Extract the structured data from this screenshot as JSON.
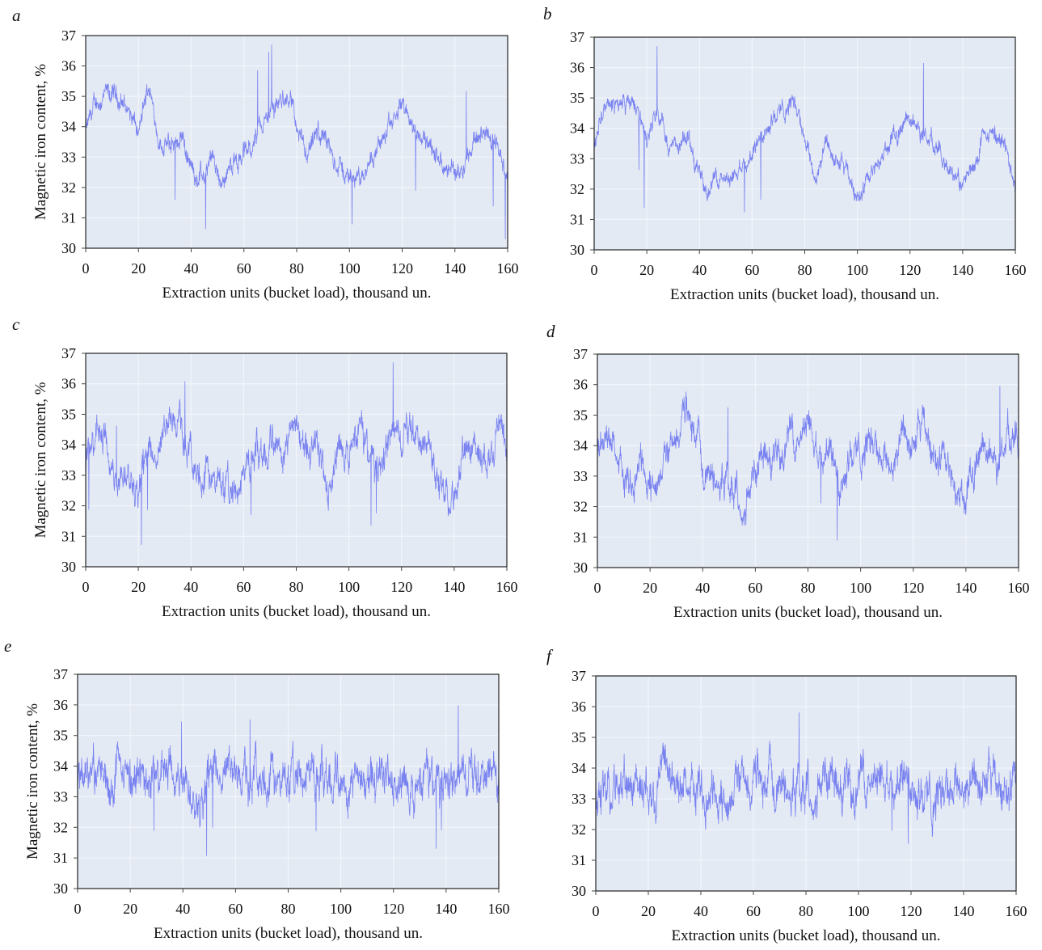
{
  "chart_data": [
    {
      "type": "line",
      "panel_label": "a",
      "xlabel": "Extraction units (bucket load), thousand un.",
      "ylabel": "Magnetic iron content, %",
      "xlim": [
        0,
        160
      ],
      "ylim": [
        30,
        37
      ],
      "xticks": [
        "0",
        "20",
        "40",
        "60",
        "80",
        "100",
        "120",
        "140",
        "160"
      ],
      "yticks": [
        "30",
        "31",
        "32",
        "33",
        "34",
        "35",
        "36",
        "37"
      ],
      "grid": true,
      "color": "#6b76f0",
      "background": "#e4eaf4",
      "x": [
        0,
        4,
        8,
        12,
        16,
        20,
        24,
        28,
        32,
        36,
        40,
        44,
        48,
        52,
        56,
        60,
        64,
        68,
        72,
        76,
        80,
        84,
        88,
        92,
        96,
        100,
        104,
        108,
        112,
        116,
        120,
        124,
        128,
        132,
        136,
        140,
        144,
        148,
        152,
        156,
        160
      ],
      "values": [
        33.8,
        34.8,
        35,
        35,
        34.6,
        33.7,
        35.4,
        33.5,
        33.3,
        33.9,
        32.6,
        32.3,
        32.8,
        32.3,
        32.8,
        33.1,
        33.5,
        34.2,
        34.6,
        35.1,
        34,
        32.8,
        33.8,
        33.2,
        32.7,
        32.3,
        32.4,
        33,
        33.5,
        34,
        34.8,
        34,
        33.8,
        33.1,
        32.6,
        32.5,
        33,
        33.6,
        33.9,
        33.5,
        32.5
      ]
    },
    {
      "type": "line",
      "panel_label": "b",
      "xlabel": "Extraction units (bucket load), thousand un.",
      "ylabel": "",
      "xlim": [
        0,
        160
      ],
      "ylim": [
        30,
        37
      ],
      "xticks": [
        "0",
        "20",
        "40",
        "60",
        "80",
        "100",
        "120",
        "140",
        "160"
      ],
      "yticks": [
        "30",
        "31",
        "32",
        "33",
        "34",
        "35",
        "36",
        "37"
      ],
      "grid": true,
      "color": "#6b76f0",
      "background": "#e4eaf4",
      "x": [
        0,
        4,
        8,
        12,
        16,
        20,
        24,
        28,
        32,
        36,
        40,
        44,
        48,
        52,
        56,
        60,
        64,
        68,
        72,
        76,
        80,
        84,
        88,
        92,
        96,
        100,
        104,
        108,
        112,
        116,
        120,
        124,
        128,
        132,
        136,
        140,
        144,
        148,
        152,
        156,
        160
      ],
      "values": [
        33.3,
        34.6,
        34.8,
        34.9,
        34.7,
        33.6,
        35,
        33.4,
        33.3,
        33.7,
        32.4,
        32,
        32.5,
        32.2,
        32.8,
        33.2,
        33.8,
        34.4,
        34.6,
        35,
        33.8,
        32.3,
        33.5,
        33,
        32.5,
        31.8,
        32.2,
        32.8,
        33.5,
        34,
        34.4,
        33.9,
        33.6,
        32.9,
        32.4,
        32.1,
        32.8,
        33.6,
        33.8,
        33.4,
        32.2
      ]
    },
    {
      "type": "line",
      "panel_label": "c",
      "xlabel": "Extraction units (bucket load), thousand un.",
      "ylabel": "Magnetic iron content, %",
      "xlim": [
        0,
        160
      ],
      "ylim": [
        30,
        37
      ],
      "xticks": [
        "0",
        "20",
        "40",
        "60",
        "80",
        "100",
        "120",
        "140",
        "160"
      ],
      "yticks": [
        "30",
        "31",
        "32",
        "33",
        "34",
        "35",
        "36",
        "37"
      ],
      "grid": true,
      "color": "#6b76f0",
      "background": "#e4eaf4",
      "x": [
        0,
        4,
        8,
        12,
        16,
        20,
        24,
        28,
        32,
        36,
        40,
        44,
        48,
        52,
        56,
        60,
        64,
        68,
        72,
        76,
        80,
        84,
        88,
        92,
        96,
        100,
        104,
        108,
        112,
        116,
        120,
        124,
        128,
        132,
        136,
        140,
        144,
        148,
        152,
        156,
        160
      ],
      "values": [
        33.5,
        34.2,
        33.8,
        32.5,
        33.5,
        32.5,
        33.5,
        33.8,
        34.8,
        34.6,
        33.5,
        33,
        32.8,
        32.7,
        32.3,
        33,
        33.8,
        33.6,
        34.2,
        34.2,
        34.8,
        33.8,
        34.2,
        32.5,
        33.8,
        33.6,
        34.5,
        33.8,
        33.2,
        34.5,
        34.2,
        34.5,
        33.8,
        33.6,
        32.5,
        32.4,
        33.8,
        34,
        33.5,
        34.5,
        33.5
      ]
    },
    {
      "type": "line",
      "panel_label": "d",
      "xlabel": "Extraction units (bucket load), thousand un.",
      "ylabel": "",
      "xlim": [
        0,
        160
      ],
      "ylim": [
        30,
        37
      ],
      "xticks": [
        "0",
        "20",
        "40",
        "60",
        "80",
        "100",
        "120",
        "140",
        "160"
      ],
      "yticks": [
        "30",
        "31",
        "32",
        "33",
        "34",
        "35",
        "36",
        "37"
      ],
      "grid": true,
      "color": "#6b76f0",
      "background": "#e4eaf4",
      "x": [
        0,
        4,
        8,
        12,
        16,
        20,
        24,
        28,
        32,
        36,
        40,
        44,
        48,
        52,
        56,
        60,
        64,
        68,
        72,
        76,
        80,
        84,
        88,
        92,
        96,
        100,
        104,
        108,
        112,
        116,
        120,
        124,
        128,
        132,
        136,
        140,
        144,
        148,
        152,
        156,
        160
      ],
      "values": [
        33.8,
        34.4,
        33.6,
        32.6,
        33.6,
        32.6,
        33.4,
        33.9,
        35,
        34.7,
        33.4,
        33,
        32.9,
        32.6,
        32.2,
        33.1,
        33.9,
        33.5,
        34.3,
        34.2,
        34.7,
        33.7,
        34.1,
        32.6,
        33.8,
        33.7,
        34.4,
        33.8,
        33.3,
        34.4,
        34.1,
        34.6,
        33.8,
        33.4,
        32.4,
        32.3,
        33.7,
        34,
        33.4,
        34.4,
        33.6
      ]
    },
    {
      "type": "line",
      "panel_label": "e",
      "xlabel": "Extraction units (bucket load), thousand un.",
      "ylabel": "Magnetic iron content, %",
      "xlim": [
        0,
        160
      ],
      "ylim": [
        30,
        37
      ],
      "xticks": [
        "0",
        "20",
        "40",
        "60",
        "80",
        "100",
        "120",
        "140",
        "160"
      ],
      "yticks": [
        "30",
        "31",
        "32",
        "33",
        "34",
        "35",
        "36",
        "37"
      ],
      "grid": true,
      "color": "#6b76f0",
      "background": "#e4eaf4",
      "x": [
        0,
        4,
        8,
        12,
        16,
        20,
        24,
        28,
        32,
        36,
        40,
        44,
        48,
        52,
        56,
        60,
        64,
        68,
        72,
        76,
        80,
        84,
        88,
        92,
        96,
        100,
        104,
        108,
        112,
        116,
        120,
        124,
        128,
        132,
        136,
        140,
        144,
        148,
        152,
        156,
        160
      ],
      "values": [
        33.6,
        33.5,
        33.8,
        33.4,
        33.7,
        33.5,
        33.6,
        33.8,
        33.5,
        33.6,
        33.4,
        33.3,
        33,
        33.6,
        33.8,
        33.7,
        33.5,
        33.7,
        33.6,
        33.4,
        33.5,
        33.6,
        33.8,
        33.7,
        33.5,
        33.6,
        33.8,
        33.6,
        33.7,
        33.9,
        33.6,
        33.3,
        33,
        33.6,
        33.7,
        33.5,
        33.6,
        33.8,
        33.5,
        33.6,
        33.4
      ]
    },
    {
      "type": "line",
      "panel_label": "f",
      "xlabel": "Extraction units (bucket load), thousand un.",
      "ylabel": "",
      "xlim": [
        0,
        160
      ],
      "ylim": [
        30,
        37
      ],
      "xticks": [
        "0",
        "20",
        "40",
        "60",
        "80",
        "100",
        "120",
        "140",
        "160"
      ],
      "yticks": [
        "30",
        "31",
        "32",
        "33",
        "34",
        "35",
        "36",
        "37"
      ],
      "grid": true,
      "color": "#6b76f0",
      "background": "#e4eaf4",
      "x": [
        0,
        4,
        8,
        12,
        16,
        20,
        24,
        28,
        32,
        36,
        40,
        44,
        48,
        52,
        56,
        60,
        64,
        68,
        72,
        76,
        80,
        84,
        88,
        92,
        96,
        100,
        104,
        108,
        112,
        116,
        120,
        124,
        128,
        132,
        136,
        140,
        144,
        148,
        152,
        156,
        160
      ],
      "values": [
        33.5,
        33.4,
        33.7,
        33.3,
        33.6,
        33.4,
        33.5,
        33.7,
        33.4,
        33.5,
        33.3,
        33.2,
        32.9,
        33.5,
        33.7,
        33.6,
        33.4,
        33.6,
        33.5,
        33.3,
        33.4,
        33.5,
        33.7,
        33.6,
        33.4,
        33.5,
        33.7,
        33.5,
        33.6,
        33.8,
        33.5,
        33.2,
        32.9,
        33.5,
        33.6,
        33.4,
        33.5,
        33.7,
        33.4,
        33.5,
        33.3
      ]
    }
  ]
}
